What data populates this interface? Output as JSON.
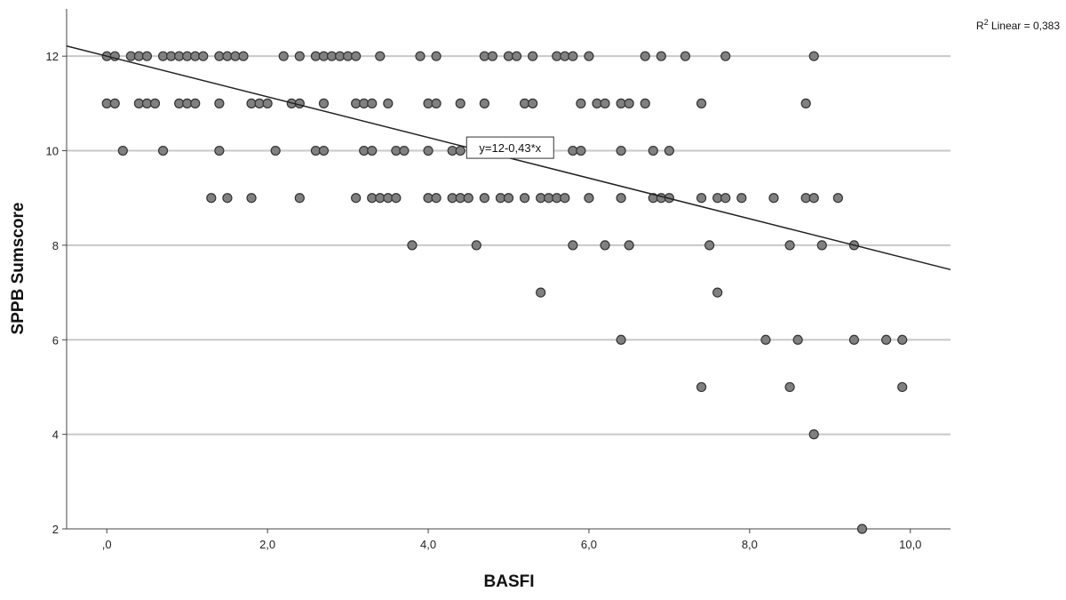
{
  "chart_data": {
    "type": "scatter",
    "title": "",
    "xlabel": "BASFI",
    "ylabel": "SPPB Sumscore",
    "xlim": [
      -0.5,
      10.5
    ],
    "ylim": [
      2,
      13
    ],
    "x_ticks": [
      0,
      2,
      4,
      6,
      8,
      10
    ],
    "x_tick_labels": [
      ",0",
      "2,0",
      "4,0",
      "6,0",
      "8,0",
      "10,0"
    ],
    "y_ticks": [
      2,
      4,
      6,
      8,
      10,
      12
    ],
    "y_tick_labels": [
      "2",
      "4",
      "6",
      "8",
      "10",
      "12"
    ],
    "grid": "horizontal",
    "marker_color": "#808080",
    "marker_edge": "#333333",
    "points": [
      {
        "x": 0.0,
        "y": 12
      },
      {
        "x": 0.1,
        "y": 12
      },
      {
        "x": 0.3,
        "y": 12
      },
      {
        "x": 0.4,
        "y": 12
      },
      {
        "x": 0.5,
        "y": 12
      },
      {
        "x": 0.7,
        "y": 12
      },
      {
        "x": 0.8,
        "y": 12
      },
      {
        "x": 0.9,
        "y": 12
      },
      {
        "x": 1.0,
        "y": 12
      },
      {
        "x": 1.1,
        "y": 12
      },
      {
        "x": 1.2,
        "y": 12
      },
      {
        "x": 1.4,
        "y": 12
      },
      {
        "x": 1.5,
        "y": 12
      },
      {
        "x": 1.6,
        "y": 12
      },
      {
        "x": 1.7,
        "y": 12
      },
      {
        "x": 2.2,
        "y": 12
      },
      {
        "x": 2.4,
        "y": 12
      },
      {
        "x": 2.6,
        "y": 12
      },
      {
        "x": 2.7,
        "y": 12
      },
      {
        "x": 2.8,
        "y": 12
      },
      {
        "x": 2.9,
        "y": 12
      },
      {
        "x": 3.0,
        "y": 12
      },
      {
        "x": 3.1,
        "y": 12
      },
      {
        "x": 3.4,
        "y": 12
      },
      {
        "x": 3.9,
        "y": 12
      },
      {
        "x": 4.1,
        "y": 12
      },
      {
        "x": 4.7,
        "y": 12
      },
      {
        "x": 4.8,
        "y": 12
      },
      {
        "x": 5.0,
        "y": 12
      },
      {
        "x": 5.1,
        "y": 12
      },
      {
        "x": 5.3,
        "y": 12
      },
      {
        "x": 5.6,
        "y": 12
      },
      {
        "x": 5.7,
        "y": 12
      },
      {
        "x": 5.8,
        "y": 12
      },
      {
        "x": 6.0,
        "y": 12
      },
      {
        "x": 6.7,
        "y": 12
      },
      {
        "x": 6.9,
        "y": 12
      },
      {
        "x": 7.2,
        "y": 12
      },
      {
        "x": 7.7,
        "y": 12
      },
      {
        "x": 8.8,
        "y": 12
      },
      {
        "x": 0.0,
        "y": 11
      },
      {
        "x": 0.1,
        "y": 11
      },
      {
        "x": 0.4,
        "y": 11
      },
      {
        "x": 0.5,
        "y": 11
      },
      {
        "x": 0.6,
        "y": 11
      },
      {
        "x": 0.9,
        "y": 11
      },
      {
        "x": 1.0,
        "y": 11
      },
      {
        "x": 1.1,
        "y": 11
      },
      {
        "x": 1.4,
        "y": 11
      },
      {
        "x": 1.8,
        "y": 11
      },
      {
        "x": 1.9,
        "y": 11
      },
      {
        "x": 2.0,
        "y": 11
      },
      {
        "x": 2.3,
        "y": 11
      },
      {
        "x": 2.4,
        "y": 11
      },
      {
        "x": 2.7,
        "y": 11
      },
      {
        "x": 3.1,
        "y": 11
      },
      {
        "x": 3.2,
        "y": 11
      },
      {
        "x": 3.3,
        "y": 11
      },
      {
        "x": 3.5,
        "y": 11
      },
      {
        "x": 4.0,
        "y": 11
      },
      {
        "x": 4.1,
        "y": 11
      },
      {
        "x": 4.4,
        "y": 11
      },
      {
        "x": 4.7,
        "y": 11
      },
      {
        "x": 5.2,
        "y": 11
      },
      {
        "x": 5.3,
        "y": 11
      },
      {
        "x": 5.9,
        "y": 11
      },
      {
        "x": 6.1,
        "y": 11
      },
      {
        "x": 6.2,
        "y": 11
      },
      {
        "x": 6.4,
        "y": 11
      },
      {
        "x": 6.5,
        "y": 11
      },
      {
        "x": 6.7,
        "y": 11
      },
      {
        "x": 7.4,
        "y": 11
      },
      {
        "x": 8.7,
        "y": 11
      },
      {
        "x": 0.2,
        "y": 10
      },
      {
        "x": 0.7,
        "y": 10
      },
      {
        "x": 1.4,
        "y": 10
      },
      {
        "x": 2.1,
        "y": 10
      },
      {
        "x": 2.6,
        "y": 10
      },
      {
        "x": 2.7,
        "y": 10
      },
      {
        "x": 3.2,
        "y": 10
      },
      {
        "x": 3.3,
        "y": 10
      },
      {
        "x": 3.6,
        "y": 10
      },
      {
        "x": 3.7,
        "y": 10
      },
      {
        "x": 4.0,
        "y": 10
      },
      {
        "x": 4.3,
        "y": 10
      },
      {
        "x": 4.4,
        "y": 10
      },
      {
        "x": 5.8,
        "y": 10
      },
      {
        "x": 5.9,
        "y": 10
      },
      {
        "x": 6.4,
        "y": 10
      },
      {
        "x": 6.8,
        "y": 10
      },
      {
        "x": 7.0,
        "y": 10
      },
      {
        "x": 1.3,
        "y": 9
      },
      {
        "x": 1.5,
        "y": 9
      },
      {
        "x": 1.8,
        "y": 9
      },
      {
        "x": 2.4,
        "y": 9
      },
      {
        "x": 3.1,
        "y": 9
      },
      {
        "x": 3.3,
        "y": 9
      },
      {
        "x": 3.4,
        "y": 9
      },
      {
        "x": 3.5,
        "y": 9
      },
      {
        "x": 3.6,
        "y": 9
      },
      {
        "x": 4.0,
        "y": 9
      },
      {
        "x": 4.1,
        "y": 9
      },
      {
        "x": 4.3,
        "y": 9
      },
      {
        "x": 4.4,
        "y": 9
      },
      {
        "x": 4.5,
        "y": 9
      },
      {
        "x": 4.7,
        "y": 9
      },
      {
        "x": 4.9,
        "y": 9
      },
      {
        "x": 5.0,
        "y": 9
      },
      {
        "x": 5.2,
        "y": 9
      },
      {
        "x": 5.4,
        "y": 9
      },
      {
        "x": 5.5,
        "y": 9
      },
      {
        "x": 5.6,
        "y": 9
      },
      {
        "x": 5.7,
        "y": 9
      },
      {
        "x": 6.0,
        "y": 9
      },
      {
        "x": 6.4,
        "y": 9
      },
      {
        "x": 6.8,
        "y": 9
      },
      {
        "x": 6.9,
        "y": 9
      },
      {
        "x": 7.0,
        "y": 9
      },
      {
        "x": 7.4,
        "y": 9
      },
      {
        "x": 7.6,
        "y": 9
      },
      {
        "x": 7.7,
        "y": 9
      },
      {
        "x": 7.9,
        "y": 9
      },
      {
        "x": 8.3,
        "y": 9
      },
      {
        "x": 8.7,
        "y": 9
      },
      {
        "x": 8.8,
        "y": 9
      },
      {
        "x": 9.1,
        "y": 9
      },
      {
        "x": 3.8,
        "y": 8
      },
      {
        "x": 4.6,
        "y": 8
      },
      {
        "x": 5.8,
        "y": 8
      },
      {
        "x": 6.2,
        "y": 8
      },
      {
        "x": 6.5,
        "y": 8
      },
      {
        "x": 7.5,
        "y": 8
      },
      {
        "x": 8.5,
        "y": 8
      },
      {
        "x": 8.9,
        "y": 8
      },
      {
        "x": 9.3,
        "y": 8
      },
      {
        "x": 5.4,
        "y": 7
      },
      {
        "x": 7.6,
        "y": 7
      },
      {
        "x": 6.4,
        "y": 6
      },
      {
        "x": 8.2,
        "y": 6
      },
      {
        "x": 8.6,
        "y": 6
      },
      {
        "x": 9.3,
        "y": 6
      },
      {
        "x": 9.7,
        "y": 6
      },
      {
        "x": 9.9,
        "y": 6
      },
      {
        "x": 7.4,
        "y": 5
      },
      {
        "x": 8.5,
        "y": 5
      },
      {
        "x": 9.9,
        "y": 5
      },
      {
        "x": 8.8,
        "y": 4
      },
      {
        "x": 9.4,
        "y": 2
      }
    ],
    "fit_line": {
      "intercept": 12,
      "slope": -0.43,
      "equation_label": "y=12-0,43*x",
      "label_x": 4.5
    },
    "r2_label": {
      "prefix": "R",
      "superscript": "2",
      "suffix": " Linear = 0,383"
    }
  }
}
